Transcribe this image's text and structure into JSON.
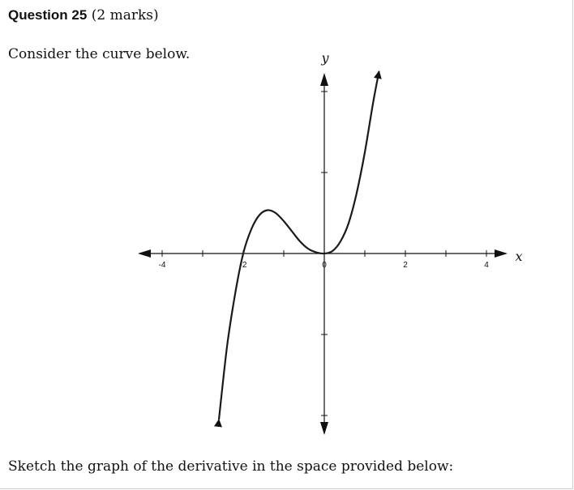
{
  "question": {
    "title": "Question 25",
    "marks": "(2 marks)"
  },
  "intro_text": "Consider the curve below.",
  "instruction_text": "Sketch the graph of the derivative in the space provided below:",
  "chart_data": {
    "type": "line",
    "xlabel": "x",
    "ylabel": "y",
    "x_tick_labels": [
      "-4",
      "-2",
      "0",
      "2",
      "4"
    ],
    "xlim": [
      -4.5,
      4.5
    ],
    "ylim": [
      -4.5,
      4.5
    ],
    "series": [
      {
        "points": [
          [
            -2.6,
            -4.1
          ],
          [
            -2.4,
            -2.3
          ],
          [
            -2.2,
            -1.0
          ],
          [
            -2.0,
            0.0
          ],
          [
            -1.8,
            0.6
          ],
          [
            -1.6,
            0.95
          ],
          [
            -1.4,
            1.07
          ],
          [
            -1.2,
            1.0
          ],
          [
            -1.0,
            0.8
          ],
          [
            -0.8,
            0.55
          ],
          [
            -0.6,
            0.3
          ],
          [
            -0.4,
            0.12
          ],
          [
            -0.2,
            0.03
          ],
          [
            0.0,
            0.0
          ],
          [
            0.2,
            0.06
          ],
          [
            0.4,
            0.3
          ],
          [
            0.6,
            0.75
          ],
          [
            0.8,
            1.5
          ],
          [
            1.0,
            2.5
          ],
          [
            1.2,
            3.7
          ],
          [
            1.35,
            4.5
          ]
        ]
      }
    ],
    "grid": false,
    "legend": "none",
    "color": "#1a1a1a"
  }
}
